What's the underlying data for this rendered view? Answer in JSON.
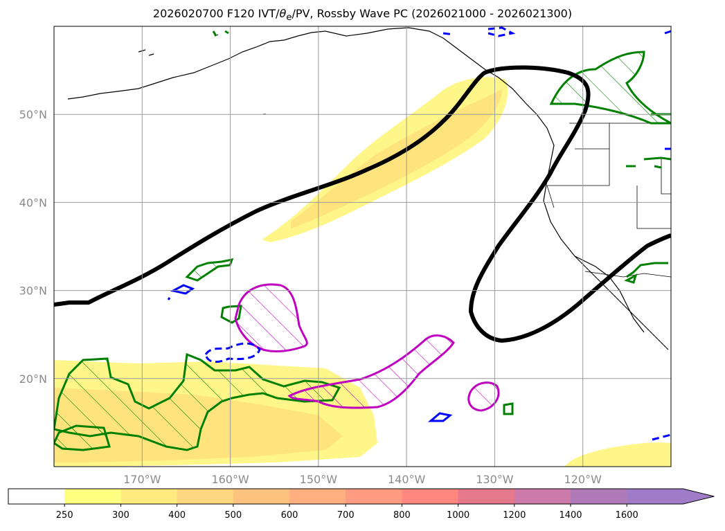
{
  "title": {
    "prefix": "2026020700 F120 IVT/",
    "theta": "θ",
    "theta_sub": "e",
    "suffix": "/PV, Rossby Wave PC (2026021000 - 2026021300)"
  },
  "map": {
    "lat_ticks": [
      {
        "lat": 50,
        "label": "50°N"
      },
      {
        "lat": 40,
        "label": "40°N"
      },
      {
        "lat": 30,
        "label": "30°N"
      },
      {
        "lat": 20,
        "label": "20°N"
      }
    ],
    "lon_ticks": [
      {
        "lon": -170,
        "label": "170°W"
      },
      {
        "lon": -160,
        "label": "160°W"
      },
      {
        "lon": -150,
        "label": "150°W"
      },
      {
        "lon": -140,
        "label": "140°W"
      },
      {
        "lon": -130,
        "label": "130°W"
      },
      {
        "lon": -120,
        "label": "120°W"
      }
    ],
    "extent": {
      "lon_min": -180,
      "lon_max": -110,
      "lat_min": 10,
      "lat_max": 60
    }
  },
  "colorbar": {
    "variable": "IVT",
    "levels": [
      "250",
      "300",
      "400",
      "500",
      "600",
      "700",
      "800",
      "1000",
      "1200",
      "1400",
      "1600"
    ],
    "colors": [
      "#ffffff",
      "#ffff80",
      "#ffeb80",
      "#ffd780",
      "#ffc380",
      "#ffaf80",
      "#ff9b80",
      "#ff8780",
      "#e6788c",
      "#cc7aaa",
      "#b07ab8",
      "#a07cc8"
    ],
    "extend": "max"
  },
  "legend_colors": {
    "ivt_low": "#fff68a",
    "ivt_mid": "#ffe07a",
    "rossby_wave": "#000000",
    "theta_e": "#008000",
    "pv_positive": "#0000ff",
    "pv_magenta": "#c000c0"
  }
}
